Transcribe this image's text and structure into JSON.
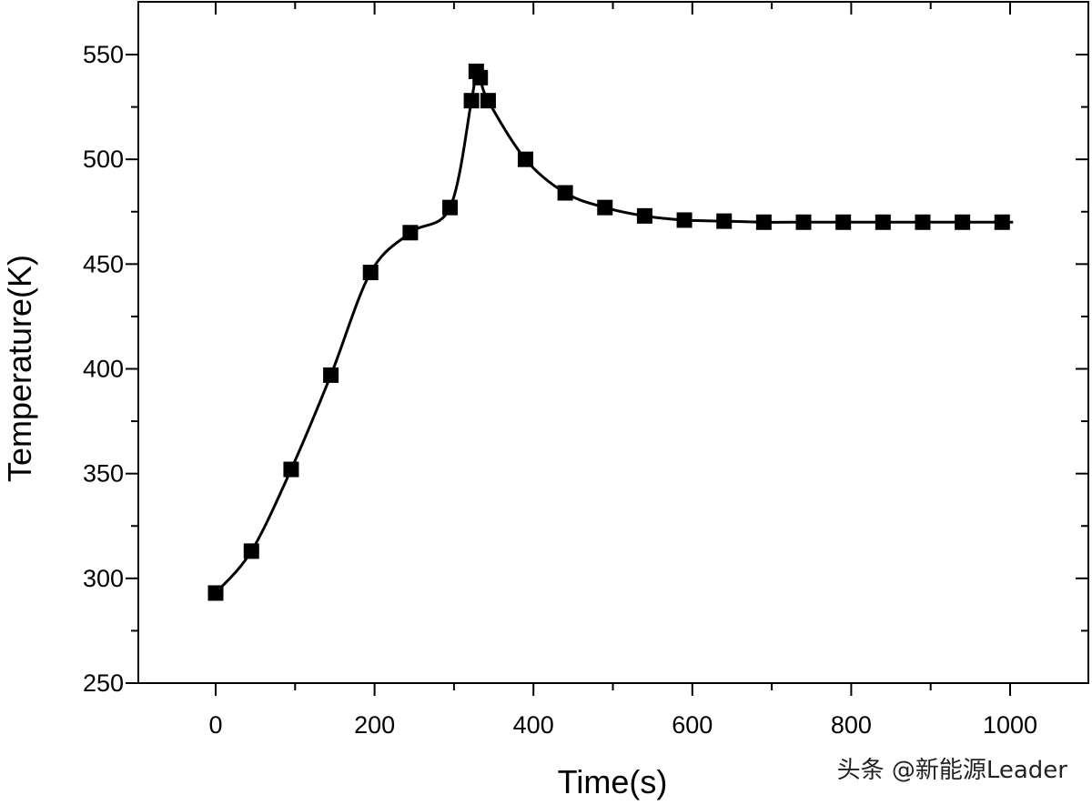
{
  "chart_data": {
    "type": "line",
    "xlabel": "Time(s)",
    "ylabel": "Temperature(K)",
    "xlim": [
      -100,
      1100
    ],
    "ylim": [
      250,
      565
    ],
    "x_ticks": [
      0,
      200,
      400,
      600,
      800,
      1000
    ],
    "x_tick_labels": [
      "0",
      "200",
      "400",
      "600",
      "800",
      "1000"
    ],
    "y_ticks": [
      250,
      300,
      350,
      400,
      450,
      500,
      550
    ],
    "y_tick_labels": [
      "250",
      "300",
      "350",
      "400",
      "450",
      "500",
      "550"
    ],
    "grid": false,
    "marker": "filled-square",
    "line_style": "smooth",
    "series": [
      {
        "x": [
          0,
          45,
          95,
          145,
          195,
          245,
          295,
          322,
          328,
          333,
          343,
          390,
          440,
          490,
          540,
          590,
          640,
          690,
          740,
          790,
          840,
          890,
          940,
          990
        ],
        "y": [
          293,
          313,
          352,
          397,
          446,
          465,
          477,
          528,
          542,
          539,
          528,
          500,
          484,
          477,
          473,
          471,
          470.5,
          470,
          470,
          470,
          470,
          470,
          470,
          470
        ]
      }
    ]
  },
  "watermark": "头条 @新能源Leader",
  "colors": {
    "line": "#000000",
    "marker": "#000000",
    "axis": "#000000"
  }
}
